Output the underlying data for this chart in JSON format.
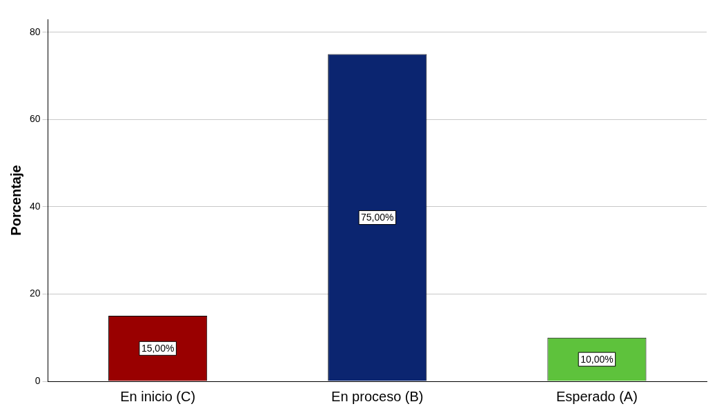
{
  "chart_data": {
    "type": "bar",
    "ylabel": "Porcentaje",
    "categories": [
      "En inicio (C)",
      "En proceso (B)",
      "Esperado (A)"
    ],
    "values": [
      15,
      75,
      10
    ],
    "colors": [
      "#990000",
      "#0b2570",
      "#5ec23c"
    ],
    "value_labels": [
      "15,00%",
      "75,00%",
      "10,00%"
    ],
    "ylim": [
      0,
      83
    ],
    "yticks": [
      0,
      20,
      40,
      60,
      80
    ],
    "grid": "y",
    "legend": false
  }
}
